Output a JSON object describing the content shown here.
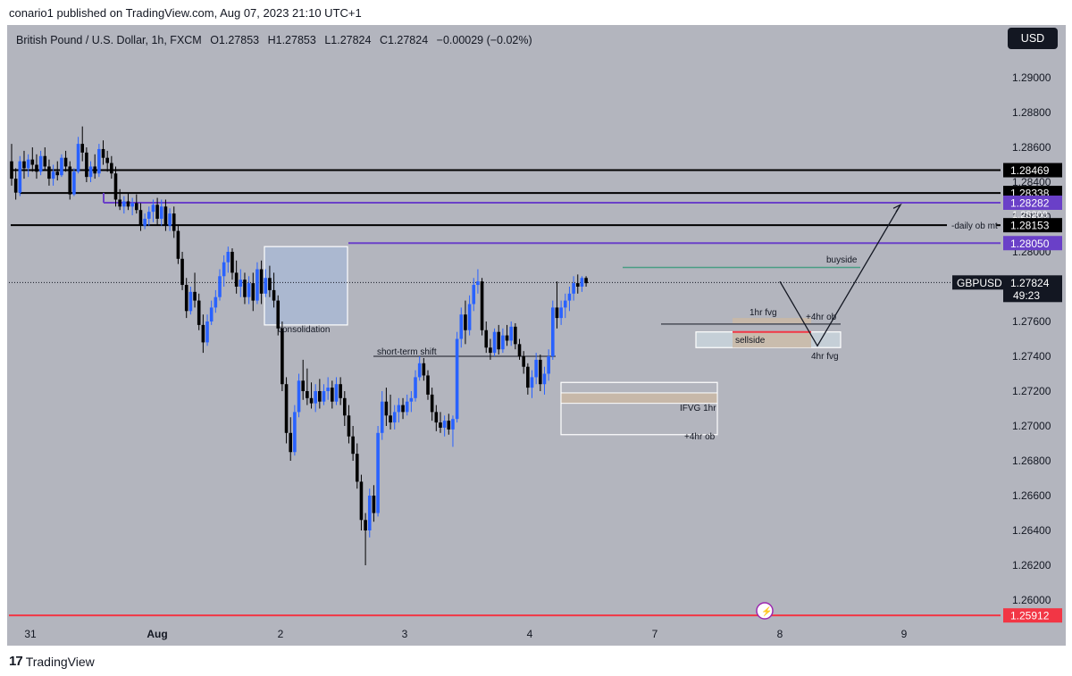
{
  "header": {
    "published": "conario1 published on TradingView.com, Aug 07, 2023 21:10 UTC+1"
  },
  "symbol": {
    "name": "British Pound / U.S. Dollar, 1h, FXCM",
    "open": "O1.27853",
    "high": "H1.27853",
    "low": "L1.27824",
    "close": "C1.27824",
    "change": "−0.00029 (−0.02%)"
  },
  "currency_button": "USD",
  "footer": {
    "logo_mark": "17",
    "brand": "TradingView"
  },
  "colors": {
    "background": "#b3b5be",
    "bull": "#2962ff",
    "bear": "#000000",
    "level_black": "#000000",
    "level_purple": "#6a40c8",
    "level_red": "#f23645",
    "fvg_fill": "#c9b8a6",
    "box_fill": "#a8b9d6",
    "liquidity_line": "#4a9d84"
  },
  "chart_data": {
    "type": "candlestick",
    "symbol": "GBPUSD",
    "timeframe": "1h",
    "x_ticks": [
      "31",
      "Aug",
      "2",
      "3",
      "4",
      "7",
      "8",
      "9"
    ],
    "y_ticks": [
      1.26,
      1.262,
      1.264,
      1.266,
      1.268,
      1.27,
      1.272,
      1.274,
      1.276,
      1.278,
      1.28,
      1.282,
      1.284,
      1.286,
      1.288,
      1.29
    ],
    "y_tick_labels": [
      "1.26000",
      "1.26200",
      "1.26400",
      "1.26600",
      "1.26800",
      "1.27000",
      "1.27200",
      "1.27400",
      "1.27600",
      "1.27800",
      "1.28000",
      "1.28200",
      "1.28400",
      "1.28600",
      "1.28800",
      "1.29000"
    ],
    "ylim": [
      1.2588,
      1.2918
    ],
    "current_price": {
      "symbol": "GBPUSD",
      "value": 1.27824,
      "label": "1.27824",
      "countdown": "49:23"
    },
    "levels": [
      {
        "value": 1.28469,
        "label": "1.28469",
        "color": "black"
      },
      {
        "value": 1.28338,
        "label": "1.28338",
        "color": "black"
      },
      {
        "value": 1.28282,
        "label": "1.28282",
        "color": "purple"
      },
      {
        "value": 1.28153,
        "label": "1.28153",
        "color": "black",
        "note": "-daily ob mt"
      },
      {
        "value": 1.2805,
        "label": "1.28050",
        "color": "purple"
      },
      {
        "value": 1.25912,
        "label": "1.25912",
        "color": "red"
      }
    ],
    "annotations": [
      "consolidation",
      "short-term shift",
      "buyside",
      "1hr fvg",
      "+4hr ob",
      "sellside",
      "4hr fvg",
      "IFVG 1hr",
      "+4hr ob"
    ],
    "candles": [
      {
        "o": 1.2852,
        "h": 1.2862,
        "l": 1.2838,
        "c": 1.2842
      },
      {
        "o": 1.2842,
        "h": 1.2848,
        "l": 1.283,
        "c": 1.2834
      },
      {
        "o": 1.2834,
        "h": 1.2855,
        "l": 1.2832,
        "c": 1.2852
      },
      {
        "o": 1.2852,
        "h": 1.2858,
        "l": 1.2842,
        "c": 1.2848
      },
      {
        "o": 1.2848,
        "h": 1.2856,
        "l": 1.2843,
        "c": 1.2853
      },
      {
        "o": 1.2853,
        "h": 1.286,
        "l": 1.2846,
        "c": 1.285
      },
      {
        "o": 1.285,
        "h": 1.2856,
        "l": 1.2842,
        "c": 1.2846
      },
      {
        "o": 1.2846,
        "h": 1.2858,
        "l": 1.2844,
        "c": 1.2855
      },
      {
        "o": 1.2855,
        "h": 1.286,
        "l": 1.2847,
        "c": 1.2849
      },
      {
        "o": 1.2849,
        "h": 1.2853,
        "l": 1.2838,
        "c": 1.2842
      },
      {
        "o": 1.2842,
        "h": 1.285,
        "l": 1.2838,
        "c": 1.2846
      },
      {
        "o": 1.2846,
        "h": 1.2852,
        "l": 1.2841,
        "c": 1.2844
      },
      {
        "o": 1.2844,
        "h": 1.2856,
        "l": 1.2843,
        "c": 1.2854
      },
      {
        "o": 1.2854,
        "h": 1.2858,
        "l": 1.2846,
        "c": 1.2849
      },
      {
        "o": 1.2849,
        "h": 1.2852,
        "l": 1.283,
        "c": 1.2833
      },
      {
        "o": 1.2833,
        "h": 1.2848,
        "l": 1.2832,
        "c": 1.2846
      },
      {
        "o": 1.2846,
        "h": 1.2866,
        "l": 1.2845,
        "c": 1.2862
      },
      {
        "o": 1.2862,
        "h": 1.2872,
        "l": 1.2852,
        "c": 1.2857
      },
      {
        "o": 1.2857,
        "h": 1.286,
        "l": 1.284,
        "c": 1.2843
      },
      {
        "o": 1.2843,
        "h": 1.2852,
        "l": 1.284,
        "c": 1.2849
      },
      {
        "o": 1.2849,
        "h": 1.2856,
        "l": 1.2842,
        "c": 1.2845
      },
      {
        "o": 1.2845,
        "h": 1.2862,
        "l": 1.2843,
        "c": 1.2859
      },
      {
        "o": 1.2859,
        "h": 1.2864,
        "l": 1.285,
        "c": 1.2854
      },
      {
        "o": 1.2854,
        "h": 1.2858,
        "l": 1.2846,
        "c": 1.2851
      },
      {
        "o": 1.2851,
        "h": 1.2855,
        "l": 1.2842,
        "c": 1.2845
      },
      {
        "o": 1.2845,
        "h": 1.2849,
        "l": 1.2826,
        "c": 1.283
      },
      {
        "o": 1.283,
        "h": 1.2836,
        "l": 1.2824,
        "c": 1.2826
      },
      {
        "o": 1.2826,
        "h": 1.2832,
        "l": 1.2822,
        "c": 1.2829
      },
      {
        "o": 1.2829,
        "h": 1.2834,
        "l": 1.2824,
        "c": 1.2826
      },
      {
        "o": 1.2826,
        "h": 1.2831,
        "l": 1.2821,
        "c": 1.2828
      },
      {
        "o": 1.2828,
        "h": 1.2833,
        "l": 1.2822,
        "c": 1.2824
      },
      {
        "o": 1.2824,
        "h": 1.2828,
        "l": 1.2812,
        "c": 1.2815
      },
      {
        "o": 1.2815,
        "h": 1.2822,
        "l": 1.2813,
        "c": 1.2819
      },
      {
        "o": 1.2819,
        "h": 1.2826,
        "l": 1.2815,
        "c": 1.2823
      },
      {
        "o": 1.2823,
        "h": 1.283,
        "l": 1.2817,
        "c": 1.2827
      },
      {
        "o": 1.2827,
        "h": 1.2831,
        "l": 1.2815,
        "c": 1.2819
      },
      {
        "o": 1.2819,
        "h": 1.283,
        "l": 1.2815,
        "c": 1.2826
      },
      {
        "o": 1.2826,
        "h": 1.283,
        "l": 1.2812,
        "c": 1.2815
      },
      {
        "o": 1.2815,
        "h": 1.2825,
        "l": 1.2812,
        "c": 1.2822
      },
      {
        "o": 1.2822,
        "h": 1.2826,
        "l": 1.2808,
        "c": 1.2812
      },
      {
        "o": 1.2812,
        "h": 1.2815,
        "l": 1.2793,
        "c": 1.2796
      },
      {
        "o": 1.2796,
        "h": 1.28,
        "l": 1.2778,
        "c": 1.2781
      },
      {
        "o": 1.2781,
        "h": 1.2785,
        "l": 1.2762,
        "c": 1.2766
      },
      {
        "o": 1.2766,
        "h": 1.278,
        "l": 1.2764,
        "c": 1.2777
      },
      {
        "o": 1.2777,
        "h": 1.2788,
        "l": 1.2768,
        "c": 1.2772
      },
      {
        "o": 1.2772,
        "h": 1.2776,
        "l": 1.2755,
        "c": 1.2758
      },
      {
        "o": 1.2758,
        "h": 1.2764,
        "l": 1.2742,
        "c": 1.2748
      },
      {
        "o": 1.2748,
        "h": 1.2764,
        "l": 1.2746,
        "c": 1.276
      },
      {
        "o": 1.276,
        "h": 1.2772,
        "l": 1.2758,
        "c": 1.2768
      },
      {
        "o": 1.2768,
        "h": 1.2778,
        "l": 1.2765,
        "c": 1.2774
      },
      {
        "o": 1.2774,
        "h": 1.279,
        "l": 1.2772,
        "c": 1.2786
      },
      {
        "o": 1.2786,
        "h": 1.2798,
        "l": 1.278,
        "c": 1.2794
      },
      {
        "o": 1.2794,
        "h": 1.2803,
        "l": 1.2788,
        "c": 1.28
      },
      {
        "o": 1.28,
        "h": 1.2802,
        "l": 1.2784,
        "c": 1.2788
      },
      {
        "o": 1.2788,
        "h": 1.2795,
        "l": 1.2776,
        "c": 1.278
      },
      {
        "o": 1.278,
        "h": 1.279,
        "l": 1.2774,
        "c": 1.2784
      },
      {
        "o": 1.2784,
        "h": 1.2788,
        "l": 1.277,
        "c": 1.2774
      },
      {
        "o": 1.2774,
        "h": 1.2786,
        "l": 1.277,
        "c": 1.2782
      },
      {
        "o": 1.2782,
        "h": 1.2788,
        "l": 1.2766,
        "c": 1.2772
      },
      {
        "o": 1.2772,
        "h": 1.2794,
        "l": 1.277,
        "c": 1.279
      },
      {
        "o": 1.279,
        "h": 1.2795,
        "l": 1.277,
        "c": 1.2776
      },
      {
        "o": 1.2776,
        "h": 1.279,
        "l": 1.2774,
        "c": 1.2785
      },
      {
        "o": 1.2785,
        "h": 1.2792,
        "l": 1.2774,
        "c": 1.2778
      },
      {
        "o": 1.2778,
        "h": 1.2788,
        "l": 1.2768,
        "c": 1.2772
      },
      {
        "o": 1.2772,
        "h": 1.2775,
        "l": 1.2752,
        "c": 1.2756
      },
      {
        "o": 1.2756,
        "h": 1.276,
        "l": 1.272,
        "c": 1.2724
      },
      {
        "o": 1.2724,
        "h": 1.2728,
        "l": 1.269,
        "c": 1.2696
      },
      {
        "o": 1.2696,
        "h": 1.2705,
        "l": 1.268,
        "c": 1.2685
      },
      {
        "o": 1.2685,
        "h": 1.2712,
        "l": 1.2683,
        "c": 1.2708
      },
      {
        "o": 1.2708,
        "h": 1.273,
        "l": 1.2705,
        "c": 1.2726
      },
      {
        "o": 1.2726,
        "h": 1.2738,
        "l": 1.2715,
        "c": 1.272
      },
      {
        "o": 1.272,
        "h": 1.2733,
        "l": 1.2712,
        "c": 1.2716
      },
      {
        "o": 1.2716,
        "h": 1.2725,
        "l": 1.271,
        "c": 1.2713
      },
      {
        "o": 1.2713,
        "h": 1.2724,
        "l": 1.2708,
        "c": 1.272
      },
      {
        "o": 1.272,
        "h": 1.2727,
        "l": 1.271,
        "c": 1.2714
      },
      {
        "o": 1.2714,
        "h": 1.2724,
        "l": 1.2712,
        "c": 1.272
      },
      {
        "o": 1.272,
        "h": 1.2728,
        "l": 1.2715,
        "c": 1.2722
      },
      {
        "o": 1.2722,
        "h": 1.2726,
        "l": 1.271,
        "c": 1.2714
      },
      {
        "o": 1.2714,
        "h": 1.2728,
        "l": 1.2712,
        "c": 1.2724
      },
      {
        "o": 1.2724,
        "h": 1.2728,
        "l": 1.2712,
        "c": 1.2716
      },
      {
        "o": 1.2716,
        "h": 1.272,
        "l": 1.27,
        "c": 1.2706
      },
      {
        "o": 1.2706,
        "h": 1.2712,
        "l": 1.269,
        "c": 1.2694
      },
      {
        "o": 1.2694,
        "h": 1.27,
        "l": 1.268,
        "c": 1.2684
      },
      {
        "o": 1.2684,
        "h": 1.269,
        "l": 1.2664,
        "c": 1.2668
      },
      {
        "o": 1.2668,
        "h": 1.2672,
        "l": 1.264,
        "c": 1.2646
      },
      {
        "o": 1.2646,
        "h": 1.265,
        "l": 1.262,
        "c": 1.264
      },
      {
        "o": 1.264,
        "h": 1.2664,
        "l": 1.2636,
        "c": 1.266
      },
      {
        "o": 1.266,
        "h": 1.2666,
        "l": 1.2645,
        "c": 1.265
      },
      {
        "o": 1.265,
        "h": 1.27,
        "l": 1.2648,
        "c": 1.2696
      },
      {
        "o": 1.2696,
        "h": 1.272,
        "l": 1.2692,
        "c": 1.2714
      },
      {
        "o": 1.2714,
        "h": 1.2722,
        "l": 1.27,
        "c": 1.2706
      },
      {
        "o": 1.2706,
        "h": 1.2718,
        "l": 1.2698,
        "c": 1.2702
      },
      {
        "o": 1.2702,
        "h": 1.2712,
        "l": 1.2698,
        "c": 1.2708
      },
      {
        "o": 1.2708,
        "h": 1.2716,
        "l": 1.2702,
        "c": 1.2712
      },
      {
        "o": 1.2712,
        "h": 1.2716,
        "l": 1.2704,
        "c": 1.2708
      },
      {
        "o": 1.2708,
        "h": 1.2718,
        "l": 1.2706,
        "c": 1.2714
      },
      {
        "o": 1.2714,
        "h": 1.272,
        "l": 1.2708,
        "c": 1.2716
      },
      {
        "o": 1.2716,
        "h": 1.2732,
        "l": 1.2714,
        "c": 1.2728
      },
      {
        "o": 1.2728,
        "h": 1.274,
        "l": 1.2726,
        "c": 1.2736
      },
      {
        "o": 1.2736,
        "h": 1.2739,
        "l": 1.2726,
        "c": 1.2729
      },
      {
        "o": 1.2729,
        "h": 1.2732,
        "l": 1.2715,
        "c": 1.2718
      },
      {
        "o": 1.2718,
        "h": 1.2722,
        "l": 1.2703,
        "c": 1.2708
      },
      {
        "o": 1.2708,
        "h": 1.2712,
        "l": 1.2697,
        "c": 1.2702
      },
      {
        "o": 1.2702,
        "h": 1.2708,
        "l": 1.2696,
        "c": 1.2699
      },
      {
        "o": 1.2699,
        "h": 1.2706,
        "l": 1.2694,
        "c": 1.2703
      },
      {
        "o": 1.2703,
        "h": 1.2707,
        "l": 1.2695,
        "c": 1.2698
      },
      {
        "o": 1.2698,
        "h": 1.2706,
        "l": 1.2688,
        "c": 1.2704
      },
      {
        "o": 1.2704,
        "h": 1.2754,
        "l": 1.2702,
        "c": 1.275
      },
      {
        "o": 1.275,
        "h": 1.2768,
        "l": 1.2745,
        "c": 1.2764
      },
      {
        "o": 1.2764,
        "h": 1.2772,
        "l": 1.2747,
        "c": 1.2755
      },
      {
        "o": 1.2755,
        "h": 1.2775,
        "l": 1.2752,
        "c": 1.277
      },
      {
        "o": 1.277,
        "h": 1.2785,
        "l": 1.2766,
        "c": 1.2781
      },
      {
        "o": 1.2781,
        "h": 1.279,
        "l": 1.2776,
        "c": 1.2783
      },
      {
        "o": 1.2783,
        "h": 1.2785,
        "l": 1.2752,
        "c": 1.2755
      },
      {
        "o": 1.2755,
        "h": 1.276,
        "l": 1.2742,
        "c": 1.2745
      },
      {
        "o": 1.2745,
        "h": 1.275,
        "l": 1.2738,
        "c": 1.2742
      },
      {
        "o": 1.2742,
        "h": 1.2756,
        "l": 1.274,
        "c": 1.2754
      },
      {
        "o": 1.2754,
        "h": 1.2758,
        "l": 1.2741,
        "c": 1.2744
      },
      {
        "o": 1.2744,
        "h": 1.2756,
        "l": 1.2742,
        "c": 1.2752
      },
      {
        "o": 1.2752,
        "h": 1.2758,
        "l": 1.2746,
        "c": 1.2749
      },
      {
        "o": 1.2749,
        "h": 1.276,
        "l": 1.2746,
        "c": 1.2757
      },
      {
        "o": 1.2757,
        "h": 1.2759,
        "l": 1.2744,
        "c": 1.2747
      },
      {
        "o": 1.2747,
        "h": 1.275,
        "l": 1.2738,
        "c": 1.274
      },
      {
        "o": 1.274,
        "h": 1.2743,
        "l": 1.273,
        "c": 1.2734
      },
      {
        "o": 1.2734,
        "h": 1.2736,
        "l": 1.2718,
        "c": 1.2722
      },
      {
        "o": 1.2722,
        "h": 1.2732,
        "l": 1.2716,
        "c": 1.2728
      },
      {
        "o": 1.2728,
        "h": 1.2742,
        "l": 1.2724,
        "c": 1.2738
      },
      {
        "o": 1.2738,
        "h": 1.2741,
        "l": 1.272,
        "c": 1.2724
      },
      {
        "o": 1.2724,
        "h": 1.2734,
        "l": 1.2718,
        "c": 1.273
      },
      {
        "o": 1.273,
        "h": 1.2744,
        "l": 1.2726,
        "c": 1.274
      },
      {
        "o": 1.274,
        "h": 1.2772,
        "l": 1.2738,
        "c": 1.2768
      },
      {
        "o": 1.2768,
        "h": 1.2783,
        "l": 1.2756,
        "c": 1.2762
      },
      {
        "o": 1.2762,
        "h": 1.2772,
        "l": 1.2758,
        "c": 1.2768
      },
      {
        "o": 1.2768,
        "h": 1.2776,
        "l": 1.2762,
        "c": 1.2772
      },
      {
        "o": 1.2772,
        "h": 1.278,
        "l": 1.2766,
        "c": 1.2776
      },
      {
        "o": 1.2776,
        "h": 1.2786,
        "l": 1.2772,
        "c": 1.2782
      },
      {
        "o": 1.2782,
        "h": 1.2787,
        "l": 1.2776,
        "c": 1.278
      },
      {
        "o": 1.278,
        "h": 1.2786,
        "l": 1.2777,
        "c": 1.2785
      },
      {
        "o": 1.2785,
        "h": 1.2786,
        "l": 1.278,
        "c": 1.2782
      }
    ]
  }
}
